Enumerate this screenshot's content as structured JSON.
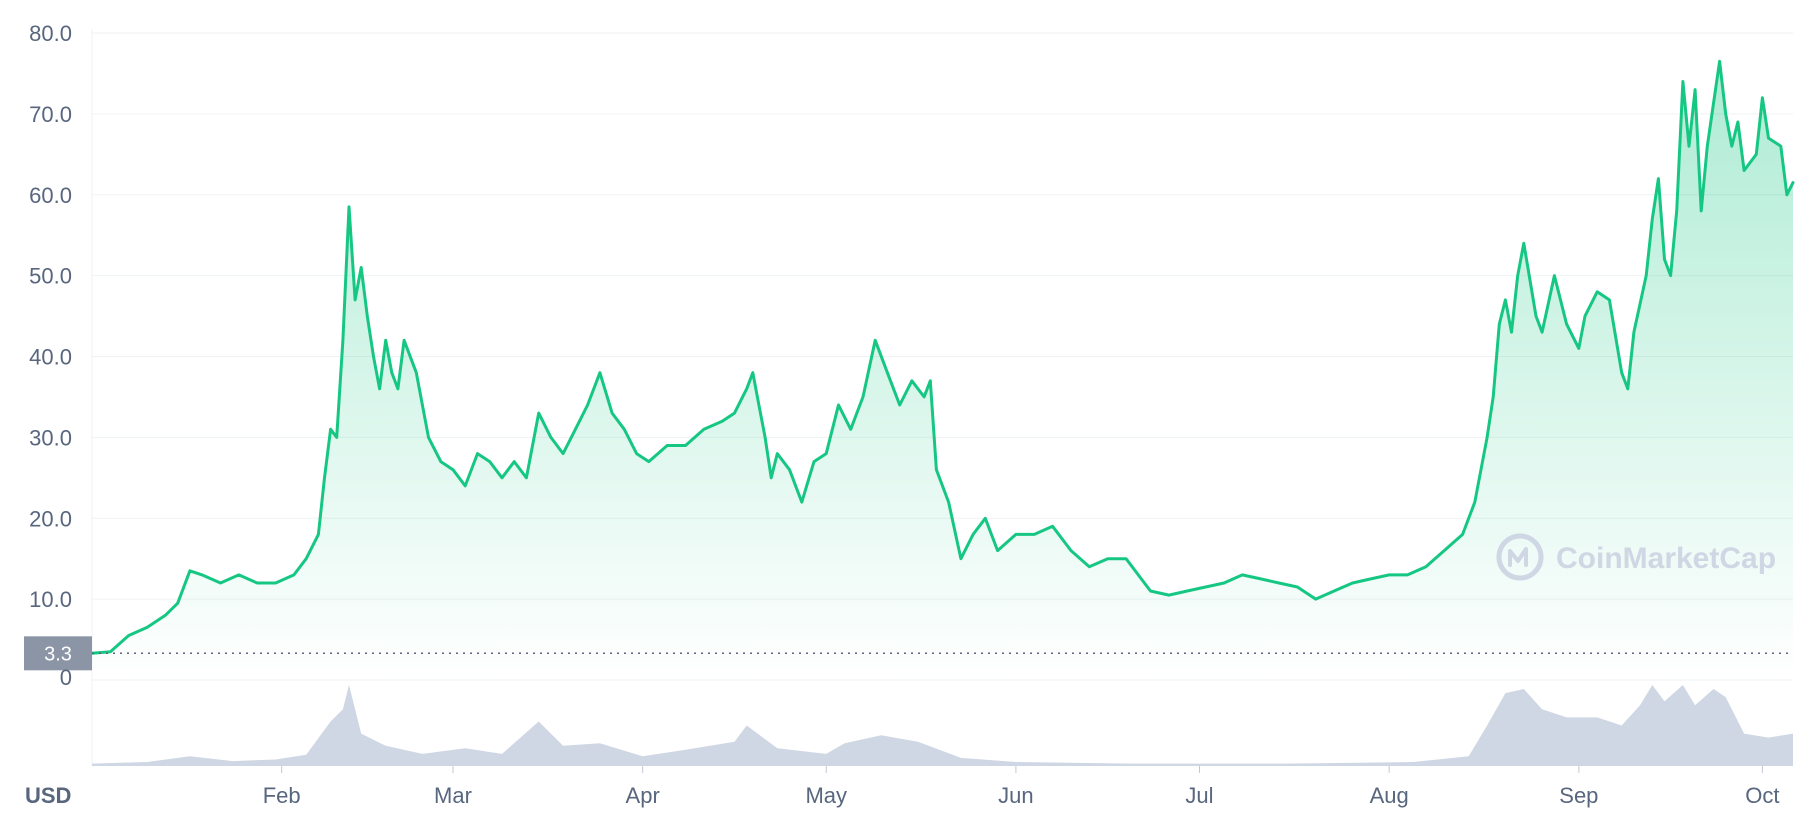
{
  "colors": {
    "line": "#16c784",
    "volume": "#cfd6e4",
    "grid": "#eff2f5",
    "axis_text": "#58667e",
    "baseline_label_bg": "#8c95a6"
  },
  "watermark": {
    "text": "CoinMarketCap",
    "icon": "coinmarketcap-logo-icon"
  },
  "chart_data": {
    "type": "area",
    "currency_label": "USD",
    "ylim": [
      0,
      80
    ],
    "yticks": [
      "80.0",
      "70.0",
      "60.0",
      "50.0",
      "40.0",
      "30.0",
      "20.0",
      "10.0"
    ],
    "ytick_values": [
      80,
      70,
      60,
      50,
      40,
      30,
      20,
      10
    ],
    "baseline": {
      "value": 3.3,
      "label": "3.3"
    },
    "volume_zero_label": "0",
    "x_start": "2021-01-01",
    "x_end": "2021-10-06",
    "xticks": [
      {
        "label": "Feb",
        "date": "2021-02-01"
      },
      {
        "label": "Mar",
        "date": "2021-03-01"
      },
      {
        "label": "Apr",
        "date": "2021-04-01"
      },
      {
        "label": "May",
        "date": "2021-05-01"
      },
      {
        "label": "Jun",
        "date": "2021-06-01"
      },
      {
        "label": "Jul",
        "date": "2021-07-01"
      },
      {
        "label": "Aug",
        "date": "2021-08-01"
      },
      {
        "label": "Sep",
        "date": "2021-09-01"
      },
      {
        "label": "Oct",
        "date": "2021-10-01"
      }
    ],
    "price_points": [
      [
        "2021-01-01",
        3.3
      ],
      [
        "2021-01-04",
        3.5
      ],
      [
        "2021-01-07",
        5.5
      ],
      [
        "2021-01-10",
        6.5
      ],
      [
        "2021-01-13",
        8.0
      ],
      [
        "2021-01-15",
        9.5
      ],
      [
        "2021-01-17",
        13.5
      ],
      [
        "2021-01-19",
        13.0
      ],
      [
        "2021-01-22",
        12.0
      ],
      [
        "2021-01-25",
        13.0
      ],
      [
        "2021-01-28",
        12.0
      ],
      [
        "2021-01-31",
        12.0
      ],
      [
        "2021-02-03",
        13.0
      ],
      [
        "2021-02-05",
        15.0
      ],
      [
        "2021-02-07",
        18.0
      ],
      [
        "2021-02-08",
        25.0
      ],
      [
        "2021-02-09",
        31.0
      ],
      [
        "2021-02-10",
        30.0
      ],
      [
        "2021-02-11",
        42.0
      ],
      [
        "2021-02-12",
        58.5
      ],
      [
        "2021-02-13",
        47.0
      ],
      [
        "2021-02-14",
        51.0
      ],
      [
        "2021-02-15",
        45.0
      ],
      [
        "2021-02-16",
        40.0
      ],
      [
        "2021-02-17",
        36.0
      ],
      [
        "2021-02-18",
        42.0
      ],
      [
        "2021-02-19",
        38.0
      ],
      [
        "2021-02-20",
        36.0
      ],
      [
        "2021-02-21",
        42.0
      ],
      [
        "2021-02-23",
        38.0
      ],
      [
        "2021-02-25",
        30.0
      ],
      [
        "2021-02-27",
        27.0
      ],
      [
        "2021-03-01",
        26.0
      ],
      [
        "2021-03-03",
        24.0
      ],
      [
        "2021-03-05",
        28.0
      ],
      [
        "2021-03-07",
        27.0
      ],
      [
        "2021-03-09",
        25.0
      ],
      [
        "2021-03-11",
        27.0
      ],
      [
        "2021-03-13",
        25.0
      ],
      [
        "2021-03-15",
        33.0
      ],
      [
        "2021-03-17",
        30.0
      ],
      [
        "2021-03-19",
        28.0
      ],
      [
        "2021-03-21",
        31.0
      ],
      [
        "2021-03-23",
        34.0
      ],
      [
        "2021-03-25",
        38.0
      ],
      [
        "2021-03-27",
        33.0
      ],
      [
        "2021-03-29",
        31.0
      ],
      [
        "2021-03-31",
        28.0
      ],
      [
        "2021-04-02",
        27.0
      ],
      [
        "2021-04-05",
        29.0
      ],
      [
        "2021-04-08",
        29.0
      ],
      [
        "2021-04-11",
        31.0
      ],
      [
        "2021-04-14",
        32.0
      ],
      [
        "2021-04-16",
        33.0
      ],
      [
        "2021-04-18",
        36.0
      ],
      [
        "2021-04-19",
        38.0
      ],
      [
        "2021-04-20",
        34.0
      ],
      [
        "2021-04-21",
        30.0
      ],
      [
        "2021-04-22",
        25.0
      ],
      [
        "2021-04-23",
        28.0
      ],
      [
        "2021-04-25",
        26.0
      ],
      [
        "2021-04-27",
        22.0
      ],
      [
        "2021-04-29",
        27.0
      ],
      [
        "2021-05-01",
        28.0
      ],
      [
        "2021-05-03",
        34.0
      ],
      [
        "2021-05-05",
        31.0
      ],
      [
        "2021-05-07",
        35.0
      ],
      [
        "2021-05-09",
        42.0
      ],
      [
        "2021-05-11",
        38.0
      ],
      [
        "2021-05-13",
        34.0
      ],
      [
        "2021-05-15",
        37.0
      ],
      [
        "2021-05-17",
        35.0
      ],
      [
        "2021-05-18",
        37.0
      ],
      [
        "2021-05-19",
        26.0
      ],
      [
        "2021-05-21",
        22.0
      ],
      [
        "2021-05-23",
        15.0
      ],
      [
        "2021-05-25",
        18.0
      ],
      [
        "2021-05-27",
        20.0
      ],
      [
        "2021-05-29",
        16.0
      ],
      [
        "2021-06-01",
        18.0
      ],
      [
        "2021-06-04",
        18.0
      ],
      [
        "2021-06-07",
        19.0
      ],
      [
        "2021-06-10",
        16.0
      ],
      [
        "2021-06-13",
        14.0
      ],
      [
        "2021-06-16",
        15.0
      ],
      [
        "2021-06-19",
        15.0
      ],
      [
        "2021-06-21",
        13.0
      ],
      [
        "2021-06-23",
        11.0
      ],
      [
        "2021-06-26",
        10.5
      ],
      [
        "2021-06-29",
        11.0
      ],
      [
        "2021-07-02",
        11.5
      ],
      [
        "2021-07-05",
        12.0
      ],
      [
        "2021-07-08",
        13.0
      ],
      [
        "2021-07-11",
        12.5
      ],
      [
        "2021-07-14",
        12.0
      ],
      [
        "2021-07-17",
        11.5
      ],
      [
        "2021-07-20",
        10.0
      ],
      [
        "2021-07-23",
        11.0
      ],
      [
        "2021-07-26",
        12.0
      ],
      [
        "2021-07-29",
        12.5
      ],
      [
        "2021-08-01",
        13.0
      ],
      [
        "2021-08-04",
        13.0
      ],
      [
        "2021-08-07",
        14.0
      ],
      [
        "2021-08-10",
        16.0
      ],
      [
        "2021-08-13",
        18.0
      ],
      [
        "2021-08-15",
        22.0
      ],
      [
        "2021-08-17",
        30.0
      ],
      [
        "2021-08-18",
        35.0
      ],
      [
        "2021-08-19",
        44.0
      ],
      [
        "2021-08-20",
        47.0
      ],
      [
        "2021-08-21",
        43.0
      ],
      [
        "2021-08-22",
        50.0
      ],
      [
        "2021-08-23",
        54.0
      ],
      [
        "2021-08-25",
        45.0
      ],
      [
        "2021-08-26",
        43.0
      ],
      [
        "2021-08-28",
        50.0
      ],
      [
        "2021-08-30",
        44.0
      ],
      [
        "2021-09-01",
        41.0
      ],
      [
        "2021-09-02",
        45.0
      ],
      [
        "2021-09-04",
        48.0
      ],
      [
        "2021-09-06",
        47.0
      ],
      [
        "2021-09-08",
        38.0
      ],
      [
        "2021-09-09",
        36.0
      ],
      [
        "2021-09-10",
        43.0
      ],
      [
        "2021-09-12",
        50.0
      ],
      [
        "2021-09-13",
        57.0
      ],
      [
        "2021-09-14",
        62.0
      ],
      [
        "2021-09-15",
        52.0
      ],
      [
        "2021-09-16",
        50.0
      ],
      [
        "2021-09-17",
        58.0
      ],
      [
        "2021-09-18",
        74.0
      ],
      [
        "2021-09-19",
        66.0
      ],
      [
        "2021-09-20",
        73.0
      ],
      [
        "2021-09-21",
        58.0
      ],
      [
        "2021-09-22",
        66.0
      ],
      [
        "2021-09-24",
        76.5
      ],
      [
        "2021-09-25",
        70.0
      ],
      [
        "2021-09-26",
        66.0
      ],
      [
        "2021-09-27",
        69.0
      ],
      [
        "2021-09-28",
        63.0
      ],
      [
        "2021-09-30",
        65.0
      ],
      [
        "2021-10-01",
        72.0
      ],
      [
        "2021-10-02",
        67.0
      ],
      [
        "2021-10-04",
        66.0
      ],
      [
        "2021-10-05",
        60.0
      ],
      [
        "2021-10-06",
        61.5
      ]
    ],
    "volume_max": 1.0,
    "volume_points": [
      [
        "2021-01-01",
        0.03
      ],
      [
        "2021-01-10",
        0.05
      ],
      [
        "2021-01-17",
        0.12
      ],
      [
        "2021-01-24",
        0.06
      ],
      [
        "2021-01-31",
        0.08
      ],
      [
        "2021-02-05",
        0.14
      ],
      [
        "2021-02-09",
        0.55
      ],
      [
        "2021-02-11",
        0.7
      ],
      [
        "2021-02-12",
        1.0
      ],
      [
        "2021-02-14",
        0.4
      ],
      [
        "2021-02-18",
        0.25
      ],
      [
        "2021-02-24",
        0.15
      ],
      [
        "2021-03-03",
        0.22
      ],
      [
        "2021-03-09",
        0.15
      ],
      [
        "2021-03-15",
        0.55
      ],
      [
        "2021-03-19",
        0.25
      ],
      [
        "2021-03-25",
        0.28
      ],
      [
        "2021-04-01",
        0.12
      ],
      [
        "2021-04-08",
        0.2
      ],
      [
        "2021-04-16",
        0.3
      ],
      [
        "2021-04-18",
        0.5
      ],
      [
        "2021-04-23",
        0.22
      ],
      [
        "2021-05-01",
        0.15
      ],
      [
        "2021-05-04",
        0.28
      ],
      [
        "2021-05-10",
        0.38
      ],
      [
        "2021-05-16",
        0.3
      ],
      [
        "2021-05-23",
        0.1
      ],
      [
        "2021-06-01",
        0.05
      ],
      [
        "2021-06-20",
        0.03
      ],
      [
        "2021-07-15",
        0.03
      ],
      [
        "2021-08-05",
        0.05
      ],
      [
        "2021-08-14",
        0.12
      ],
      [
        "2021-08-17",
        0.5
      ],
      [
        "2021-08-20",
        0.9
      ],
      [
        "2021-08-23",
        0.95
      ],
      [
        "2021-08-26",
        0.7
      ],
      [
        "2021-08-30",
        0.6
      ],
      [
        "2021-09-04",
        0.6
      ],
      [
        "2021-09-08",
        0.5
      ],
      [
        "2021-09-11",
        0.75
      ],
      [
        "2021-09-13",
        1.0
      ],
      [
        "2021-09-15",
        0.8
      ],
      [
        "2021-09-18",
        1.0
      ],
      [
        "2021-09-20",
        0.75
      ],
      [
        "2021-09-23",
        0.95
      ],
      [
        "2021-09-25",
        0.85
      ],
      [
        "2021-09-28",
        0.4
      ],
      [
        "2021-10-02",
        0.35
      ],
      [
        "2021-10-06",
        0.4
      ]
    ]
  }
}
